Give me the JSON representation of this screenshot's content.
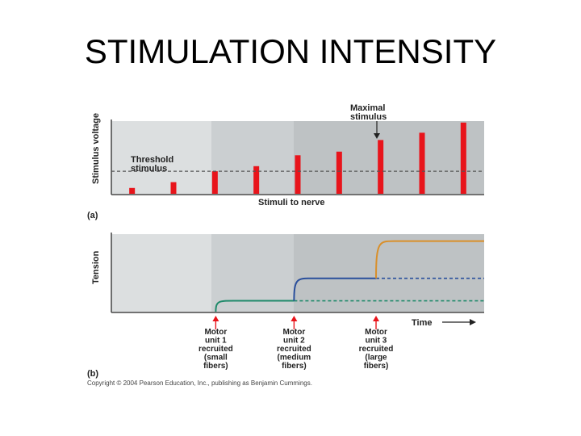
{
  "slide": {
    "title": "STIMULATION INTENSITY"
  },
  "colors": {
    "band1": "#dcdfe0",
    "band2": "#cbcfd1",
    "band3": "#bec2c4",
    "bar": "#e8141b",
    "arrow": "#e8141b",
    "unit1": "#1f8a6a",
    "unit2": "#2a4f9c",
    "unit3": "#d98f2a",
    "threshold": "#555555"
  },
  "chart_data": [
    {
      "panel": "a",
      "type": "bar",
      "ylabel": "Stimulus voltage",
      "xlabel": "Stimuli to nerve",
      "threshold_label": [
        "Threshold",
        "stimulus"
      ],
      "maximal_label": [
        "Maximal",
        "stimulus"
      ],
      "threshold_value": 0.31,
      "maximal_index": 6,
      "values": [
        0.08,
        0.16,
        0.31,
        0.38,
        0.53,
        0.58,
        0.74,
        0.84,
        0.98
      ]
    },
    {
      "panel": "b",
      "type": "line",
      "ylabel": "Tension",
      "xlabel": "Time",
      "series": [
        {
          "start": 0.28,
          "level": 0.14
        },
        {
          "start": 0.49,
          "level": 0.43
        },
        {
          "start": 0.71,
          "level": 0.91
        }
      ],
      "recruit_labels": [
        [
          "Motor",
          "unit 1",
          "recruited",
          "(small",
          "fibers)"
        ],
        [
          "Motor",
          "unit 2",
          "recruited",
          "(medium",
          "fibers)"
        ],
        [
          "Motor",
          "unit 3",
          "recruited",
          "(large",
          "fibers)"
        ]
      ]
    }
  ],
  "panel_labels": {
    "a": "(a)",
    "b": "(b)"
  },
  "copyright": "Copyright © 2004 Pearson Education, Inc., publishing as Benjamin Cummings."
}
